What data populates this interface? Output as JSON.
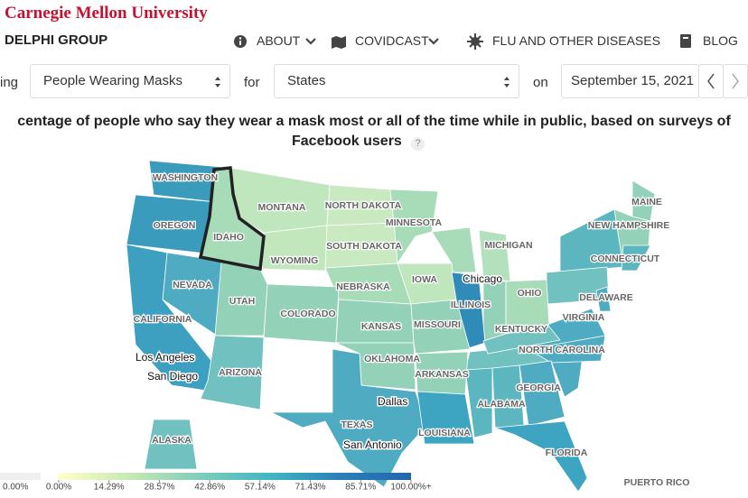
{
  "header": {
    "brand": "Carnegie Mellon University",
    "group": "DELPHI GROUP",
    "nav": [
      "ABOUT",
      "COVIDCAST",
      "FLU AND OTHER DISEASES",
      "BLOG"
    ]
  },
  "controls": {
    "lead": "ing",
    "signal": "People Wearing Masks",
    "for_label": "for",
    "region": "States",
    "on_label": "on",
    "date": "September 15, 2021"
  },
  "map": {
    "title_line1": "centage of people who say they wear a mask most or all of the time while in public, based on surveys of",
    "title_line2": "Facebook users",
    "help": "?",
    "highlight": "IDAHO",
    "states": [
      {
        "name": "WASHINGTON",
        "color": "#3a9bbd"
      },
      {
        "name": "OREGON",
        "color": "#3a9bbd"
      },
      {
        "name": "IDAHO",
        "color": "#a8dcb9"
      },
      {
        "name": "MONTANA",
        "color": "#bfe6bd"
      },
      {
        "name": "NORTH DAKOTA",
        "color": "#c9eac0"
      },
      {
        "name": "MINNESOTA",
        "color": "#a8dcb9"
      },
      {
        "name": "NEVADA",
        "color": "#4eabc1"
      },
      {
        "name": "UTAH",
        "color": "#93d2b9"
      },
      {
        "name": "WYOMING",
        "color": "#c2e7bd"
      },
      {
        "name": "SOUTH DAKOTA",
        "color": "#c9eac0"
      },
      {
        "name": "MICHIGAN",
        "color": "#b4e1bd"
      },
      {
        "name": "MAINE",
        "color": "#93d2b9"
      },
      {
        "name": "NEW HAMPSHIRE",
        "color": "#93d2b9"
      },
      {
        "name": "CONNECTICUT",
        "color": "#5cb6c0"
      },
      {
        "name": "IOWA",
        "color": "#bfe6bd"
      },
      {
        "name": "NEBRASKA",
        "color": "#a8dcb9"
      },
      {
        "name": "OHIO",
        "color": "#a8dcb9"
      },
      {
        "name": "DELAWARE",
        "color": "#4eabc1"
      },
      {
        "name": "CALIFORNIA",
        "color": "#3da0c1"
      },
      {
        "name": "COLORADO",
        "color": "#93d2b9"
      },
      {
        "name": "ILLINOIS",
        "color": "#2f8cb9"
      },
      {
        "name": "KANSAS",
        "color": "#93d2b9"
      },
      {
        "name": "MISSOURI",
        "color": "#93d2b9"
      },
      {
        "name": "VIRGINIA",
        "color": "#4eabc1"
      },
      {
        "name": "KENTUCKY",
        "color": "#70c1bf"
      },
      {
        "name": "NORTH CAROLINA",
        "color": "#4eabc1"
      },
      {
        "name": "ARIZONA",
        "color": "#70c1bf"
      },
      {
        "name": "OKLAHOMA",
        "color": "#93d2b9"
      },
      {
        "name": "ARKANSAS",
        "color": "#93d2b9"
      },
      {
        "name": "ALABAMA",
        "color": "#5cb6c0"
      },
      {
        "name": "GEORGIA",
        "color": "#4eabc1"
      },
      {
        "name": "TEXAS",
        "color": "#4eabc1"
      },
      {
        "name": "LOUISIANA",
        "color": "#3da5c1"
      },
      {
        "name": "FLORIDA",
        "color": "#3da5c1"
      },
      {
        "name": "ALASKA",
        "color": "#70c1bf"
      },
      {
        "name": "PUERTO RICO",
        "color": "#ffffff"
      }
    ],
    "cities": [
      "Chicago",
      "Los Angeles",
      "San Diego",
      "Dallas",
      "San Antonio"
    ],
    "legend": {
      "missing": {
        "label": "0.00%",
        "color": "#eeeeee"
      },
      "colors": [
        "#ffffcc",
        "#c7e9b4",
        "#7fcdbb",
        "#41b6c4",
        "#2c7fb8",
        "#2166ac"
      ],
      "range": [
        0,
        100
      ],
      "ticks": [
        {
          "value": 0,
          "label": "0.00%"
        },
        {
          "value": 14.29,
          "label": "14.29%"
        },
        {
          "value": 28.57,
          "label": "28.57%"
        },
        {
          "value": 42.86,
          "label": "42.86%"
        },
        {
          "value": 57.14,
          "label": "57.14%"
        },
        {
          "value": 71.43,
          "label": "71.43%"
        },
        {
          "value": 85.71,
          "label": "85.71%"
        },
        {
          "value": 100,
          "label": "100.00%+"
        }
      ]
    }
  }
}
